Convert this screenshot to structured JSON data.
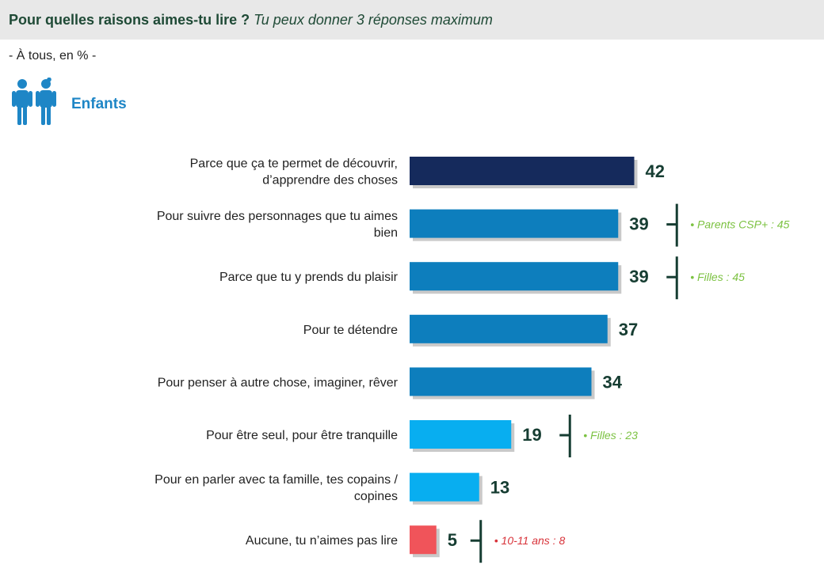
{
  "header": {
    "title_bold": "Pour quelles raisons aimes-tu lire ?",
    "title_italic": "Tu peux donner 3 réponses maximum"
  },
  "subtitle": "- À tous, en % -",
  "group": {
    "label": "Enfants",
    "icon": "children-icon",
    "icon_color": "#1e86c6"
  },
  "chart_data": {
    "type": "bar",
    "orientation": "horizontal",
    "xlim": [
      0,
      50
    ],
    "grid": false,
    "categories": [
      [
        "Parce que ça te permet de découvrir,",
        "d’apprendre des choses"
      ],
      [
        "Pour suivre des personnages que tu aimes",
        "bien"
      ],
      [
        "Parce que tu y prends du plaisir"
      ],
      [
        "Pour te détendre"
      ],
      [
        "Pour penser à autre chose, imaginer, rêver"
      ],
      [
        "Pour être seul, pour être tranquille"
      ],
      [
        "Pour en parler avec ta famille, tes copains /",
        "copines"
      ],
      [
        "Aucune, tu n’aimes pas lire"
      ]
    ],
    "values": [
      42,
      39,
      39,
      37,
      34,
      19,
      13,
      5
    ],
    "bar_colors": [
      "#152a5c",
      "#0d7ebd",
      "#0d7ebd",
      "#0d7ebd",
      "#0d7ebd",
      "#08aef0",
      "#08aef0",
      "#f0545a"
    ],
    "annotations": [
      {
        "index": 1,
        "text": "• Parents CSP+ : 45",
        "color": "#7cc242"
      },
      {
        "index": 2,
        "text": "• Filles : 45",
        "color": "#7cc242"
      },
      {
        "index": 5,
        "text": "• Filles : 23",
        "color": "#7cc242"
      },
      {
        "index": 7,
        "text": "• 10-11 ans : 8",
        "color": "#d8333a"
      }
    ]
  }
}
